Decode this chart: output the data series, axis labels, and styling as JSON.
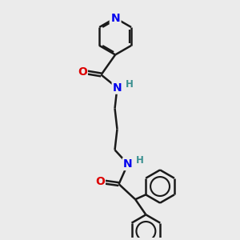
{
  "background_color": "#ebebeb",
  "bond_color": "#1a1a1a",
  "nitrogen_color": "#0000ee",
  "oxygen_color": "#dd0000",
  "hydrogen_color": "#3a9090",
  "bond_width": 1.8,
  "font_size_atom": 10,
  "font_size_h": 8.5,
  "figsize": [
    3.0,
    3.0
  ],
  "dpi": 100,
  "xlim": [
    0,
    10
  ],
  "ylim": [
    0,
    10
  ]
}
